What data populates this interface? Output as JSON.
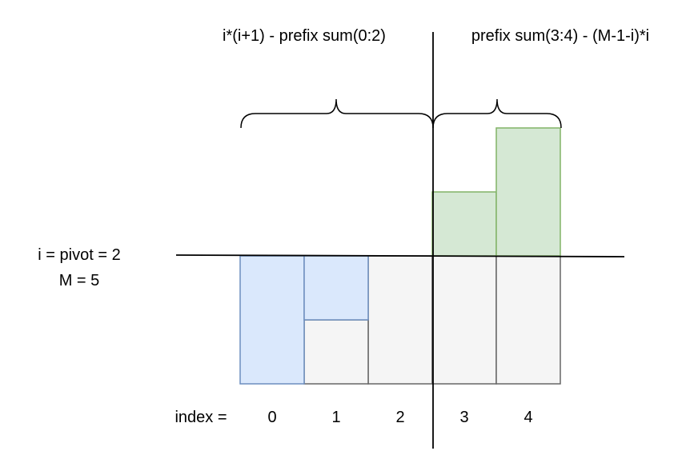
{
  "labels": {
    "left_formula": "i*(i+1) - prefix sum(0:2)",
    "right_formula": "prefix sum(3:4) - (M-1-i)*i",
    "pivot": "i = pivot = 2",
    "m": "M = 5",
    "index_prefix": "index =",
    "indices": [
      "0",
      "1",
      "2",
      "3",
      "4"
    ]
  },
  "colors": {
    "blue_fill": "#dae8fc",
    "blue_stroke": "#6c8ebf",
    "green_fill": "#d5e8d4",
    "green_stroke": "#82b366",
    "gray_fill": "#f5f5f5",
    "gray_stroke": "#666666"
  }
}
